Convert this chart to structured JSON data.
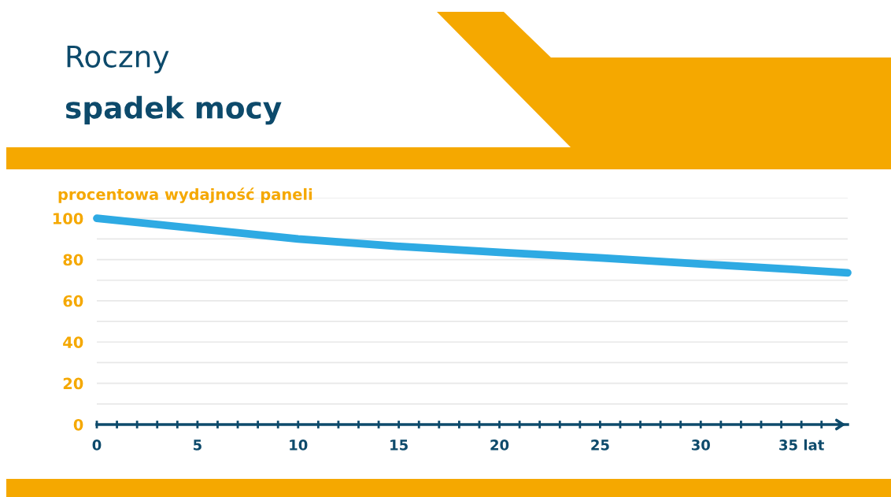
{
  "chart_data": {
    "type": "line",
    "title": "Roczny",
    "subtitle": "spadek mocy",
    "ylabel": "procentowa wydajność paneli",
    "x": [
      0,
      5,
      10,
      15,
      20,
      25,
      30,
      37.3
    ],
    "series": [
      {
        "color": "#2eaae3",
        "values": [
          100,
          95,
          90,
          86.4,
          83.5,
          80.8,
          77.9,
          73.6
        ]
      }
    ],
    "xlim": [
      0,
      37.3
    ],
    "xticks": [
      0,
      {
        "value": 1,
        "label": null
      },
      {
        "value": 2,
        "label": null
      },
      {
        "value": 3,
        "label": null
      },
      {
        "value": 4,
        "label": null
      },
      5,
      {
        "value": 6,
        "label": null
      },
      {
        "value": 7,
        "label": null
      },
      {
        "value": 8,
        "label": null
      },
      {
        "value": 9,
        "label": null
      },
      10,
      {
        "value": 11,
        "label": null
      },
      {
        "value": 12,
        "label": null
      },
      {
        "value": 13,
        "label": null
      },
      {
        "value": 14,
        "label": null
      },
      15,
      {
        "value": 16,
        "label": null
      },
      {
        "value": 17,
        "label": null
      },
      {
        "value": 18,
        "label": null
      },
      {
        "value": 19,
        "label": null
      },
      20,
      {
        "value": 21,
        "label": null
      },
      {
        "value": 22,
        "label": null
      },
      {
        "value": 23,
        "label": null
      },
      {
        "value": 24,
        "label": null
      },
      25,
      {
        "value": 26,
        "label": null
      },
      {
        "value": 27,
        "label": null
      },
      {
        "value": 28,
        "label": null
      },
      {
        "value": 29,
        "label": null
      },
      30,
      {
        "value": 31,
        "label": null
      },
      {
        "value": 32,
        "label": null
      },
      {
        "value": 33,
        "label": null
      },
      {
        "value": 34,
        "label": null
      },
      {
        "value": 35,
        "label": "35 lat"
      },
      {
        "value": 36,
        "label": null
      }
    ],
    "ylim": [
      0,
      110
    ],
    "yticks": [
      0,
      {
        "value": 10,
        "label": null
      },
      20,
      {
        "value": 30,
        "label": null
      },
      40,
      {
        "value": 50,
        "label": null
      },
      60,
      {
        "value": 70,
        "label": null
      },
      80,
      {
        "value": 90,
        "label": null
      },
      100,
      {
        "value": 110,
        "label": null
      }
    ],
    "grid": "y",
    "legend": false,
    "marker": "none",
    "line_style": "solid"
  }
}
